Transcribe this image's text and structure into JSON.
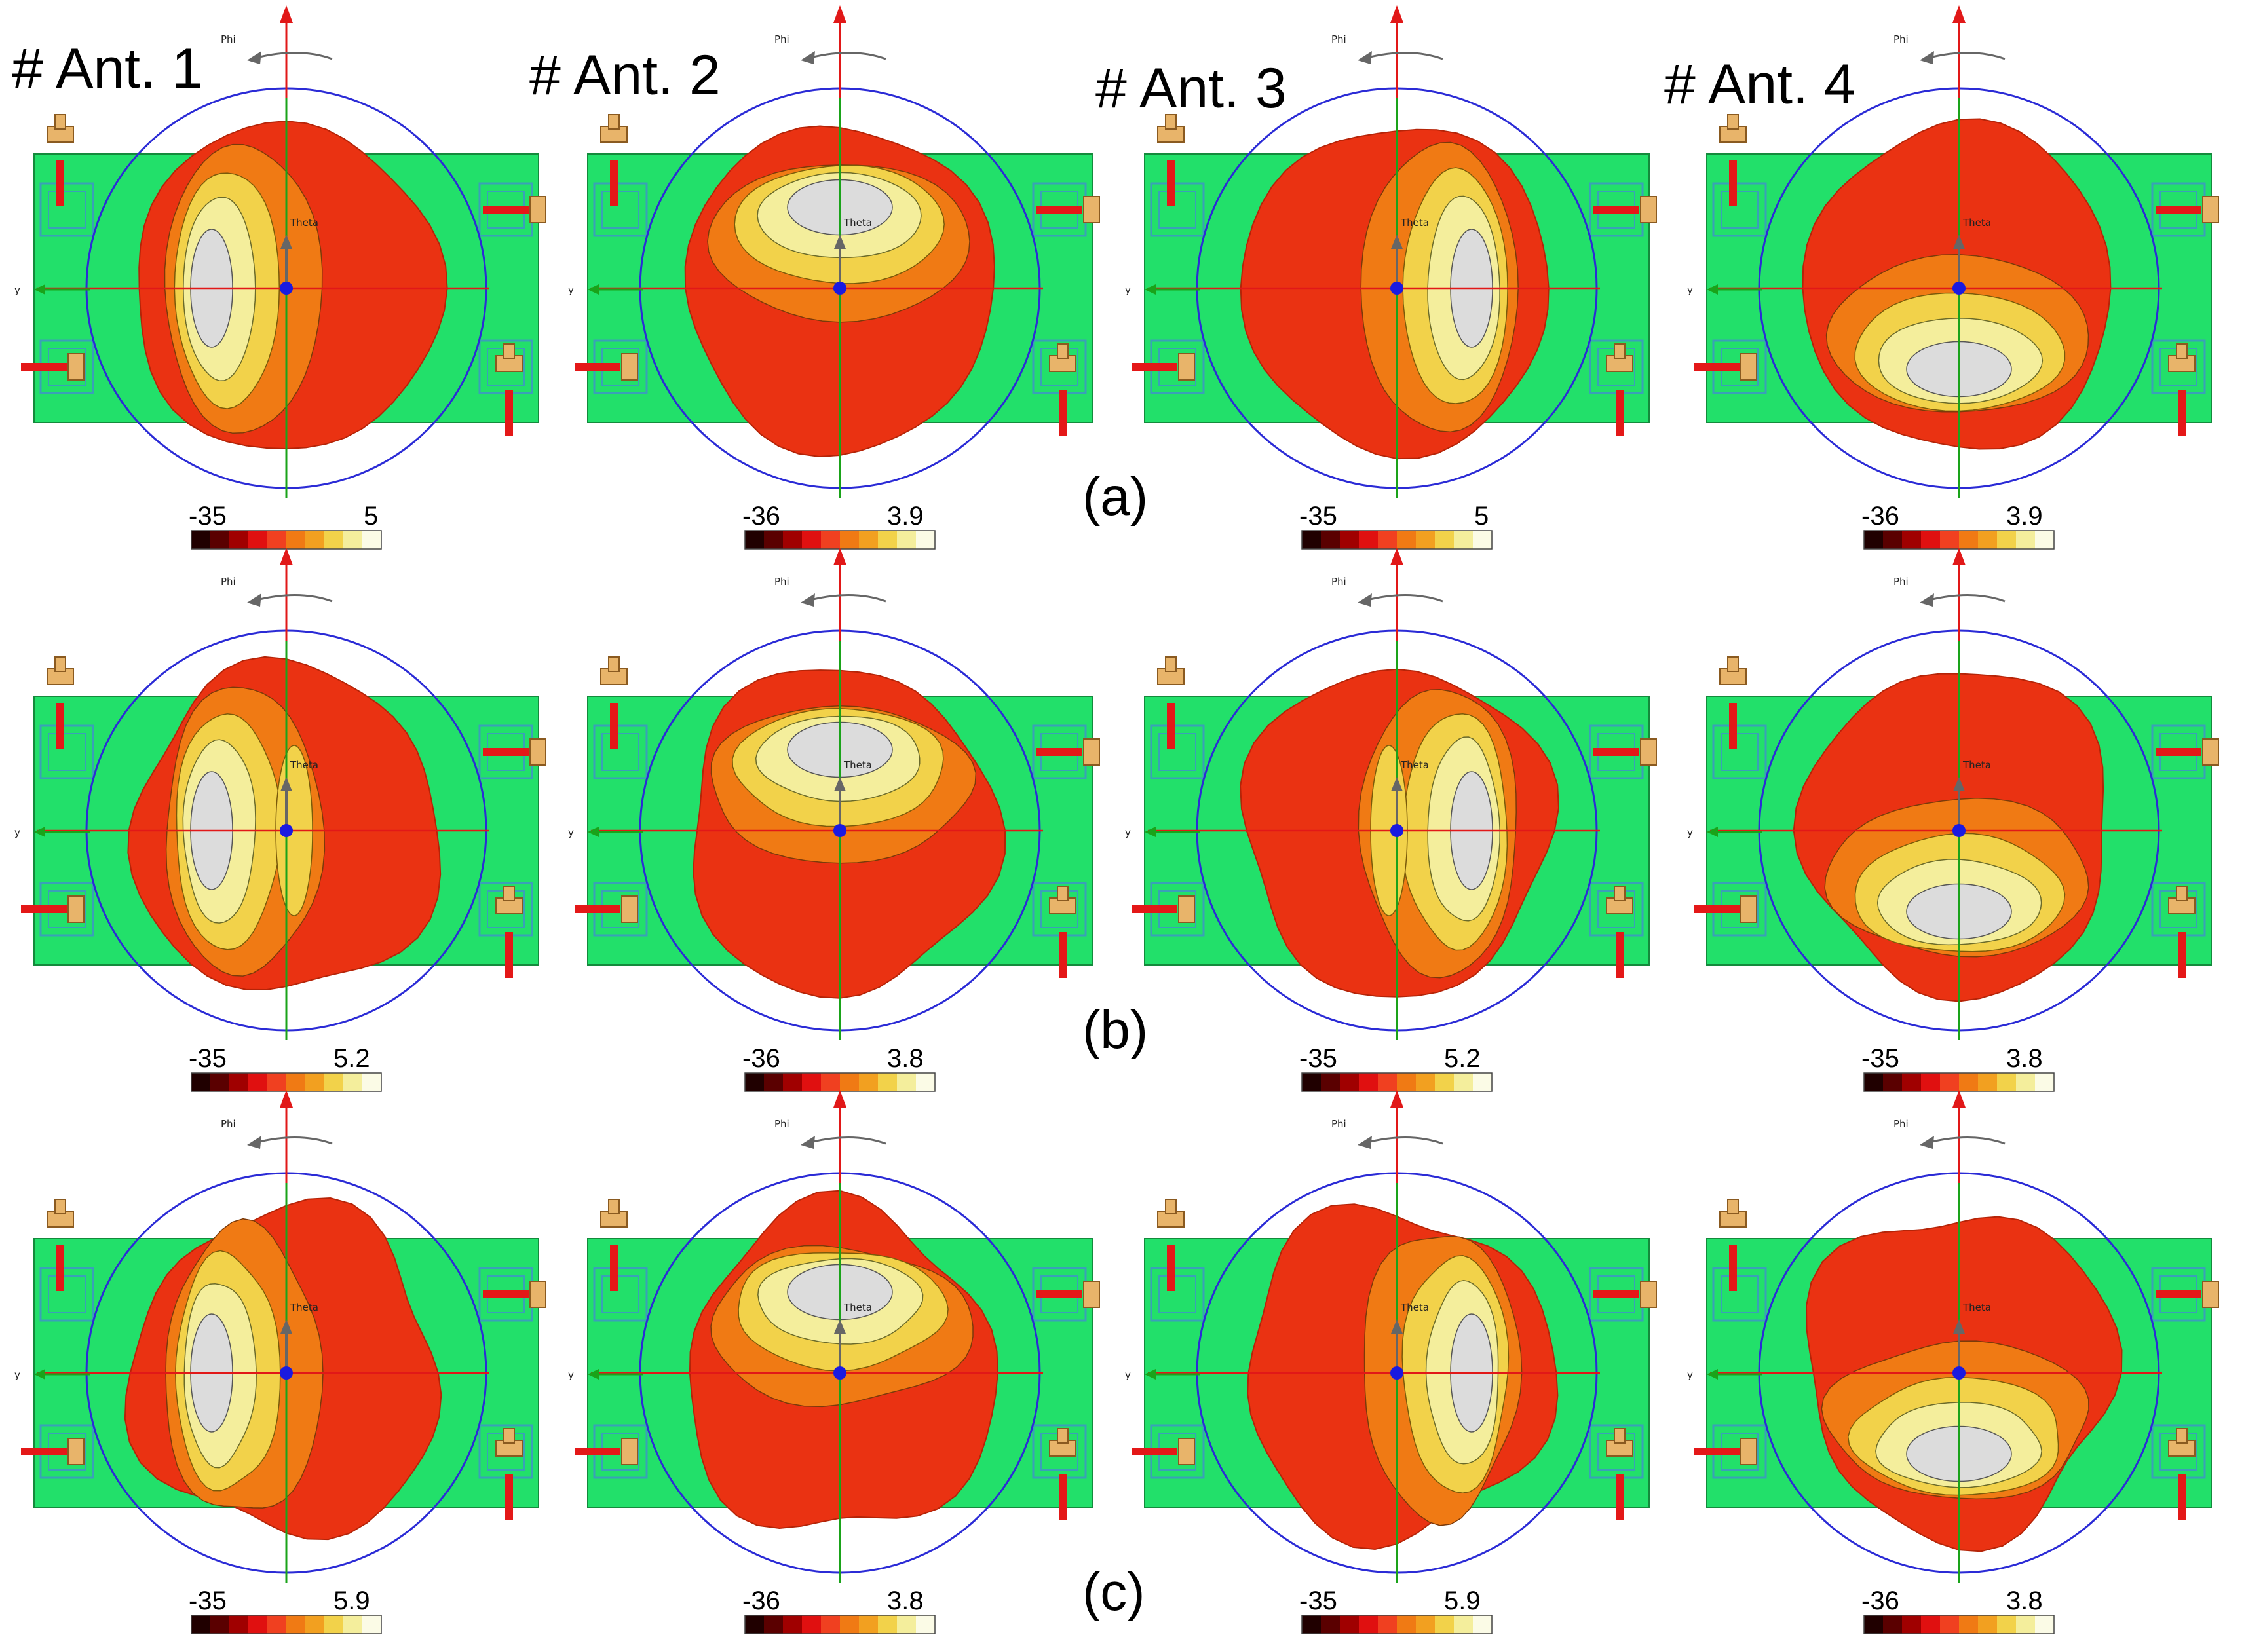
{
  "antenna_titles": [
    "# Ant. 1",
    "# Ant. 2",
    "# Ant. 3",
    "# Ant. 4"
  ],
  "row_labels": [
    "(a)",
    "(b)",
    "(c)"
  ],
  "axis_labels": {
    "phi": "Phi",
    "theta": "Theta",
    "y": "y"
  },
  "scales": [
    [
      {
        "min": "-35",
        "max": "5"
      },
      {
        "min": "-36",
        "max": "3.9"
      },
      {
        "min": "-35",
        "max": "5"
      },
      {
        "min": "-36",
        "max": "3.9"
      }
    ],
    [
      {
        "min": "-35",
        "max": "5.2"
      },
      {
        "min": "-36",
        "max": "3.8"
      },
      {
        "min": "-35",
        "max": "5.2"
      },
      {
        "min": "-35",
        "max": "3.8"
      }
    ],
    [
      {
        "min": "-35",
        "max": "5.9"
      },
      {
        "min": "-36",
        "max": "3.8"
      },
      {
        "min": "-35",
        "max": "5.9"
      },
      {
        "min": "-36",
        "max": "3.8"
      }
    ]
  ],
  "colors": {
    "substrate": "#22e06a",
    "circle": "#2b2bd6",
    "z_axis": "#e11818",
    "y_axis": "#1aa31a",
    "lobe_red": "#ea3212",
    "lobe_orange": "#f07a14",
    "lobe_yellow": "#f2d24a",
    "lobe_light": "#f4ee9c",
    "lobe_peak": "#dcdcdc",
    "port_red": "#e41818",
    "connector": "#e8b46a"
  }
}
